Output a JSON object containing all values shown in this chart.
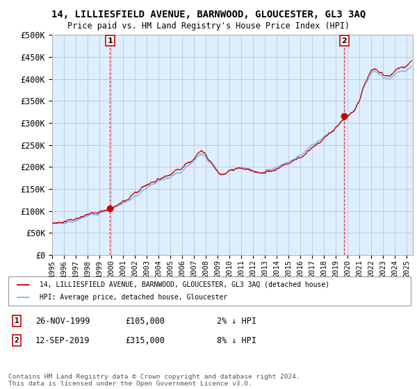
{
  "title": "14, LILLIESFIELD AVENUE, BARNWOOD, GLOUCESTER, GL3 3AQ",
  "subtitle": "Price paid vs. HM Land Registry's House Price Index (HPI)",
  "ylabel_ticks": [
    "£0",
    "£50K",
    "£100K",
    "£150K",
    "£200K",
    "£250K",
    "£300K",
    "£350K",
    "£400K",
    "£450K",
    "£500K"
  ],
  "ytick_values": [
    0,
    50000,
    100000,
    150000,
    200000,
    250000,
    300000,
    350000,
    400000,
    450000,
    500000
  ],
  "ylim": [
    0,
    500000
  ],
  "xlim_start": 1995.0,
  "xlim_end": 2025.5,
  "sale1_year": 1999.9,
  "sale1_price": 105000,
  "sale1_label": "1",
  "sale1_date": "26-NOV-1999",
  "sale1_price_str": "£105,000",
  "sale1_hpi_diff": "2% ↓ HPI",
  "sale2_year": 2019.7,
  "sale2_price": 315000,
  "sale2_label": "2",
  "sale2_date": "12-SEP-2019",
  "sale2_price_str": "£315,000",
  "sale2_hpi_diff": "8% ↓ HPI",
  "hpi_color": "#7ab8e8",
  "price_color": "#cc0000",
  "marker_color": "#cc0000",
  "vline_color": "#cc0000",
  "background_color": "#ffffff",
  "plot_bg_color": "#ddeeff",
  "grid_color": "#bbbbcc",
  "legend_label_red": "14, LILLIESFIELD AVENUE, BARNWOOD, GLOUCESTER, GL3 3AQ (detached house)",
  "legend_label_blue": "HPI: Average price, detached house, Gloucester",
  "footer": "Contains HM Land Registry data © Crown copyright and database right 2024.\nThis data is licensed under the Open Government Licence v3.0.",
  "xtick_years": [
    1995,
    1996,
    1997,
    1998,
    1999,
    2000,
    2001,
    2002,
    2003,
    2004,
    2005,
    2006,
    2007,
    2008,
    2009,
    2010,
    2011,
    2012,
    2013,
    2014,
    2015,
    2016,
    2017,
    2018,
    2019,
    2020,
    2021,
    2022,
    2023,
    2024,
    2025
  ]
}
